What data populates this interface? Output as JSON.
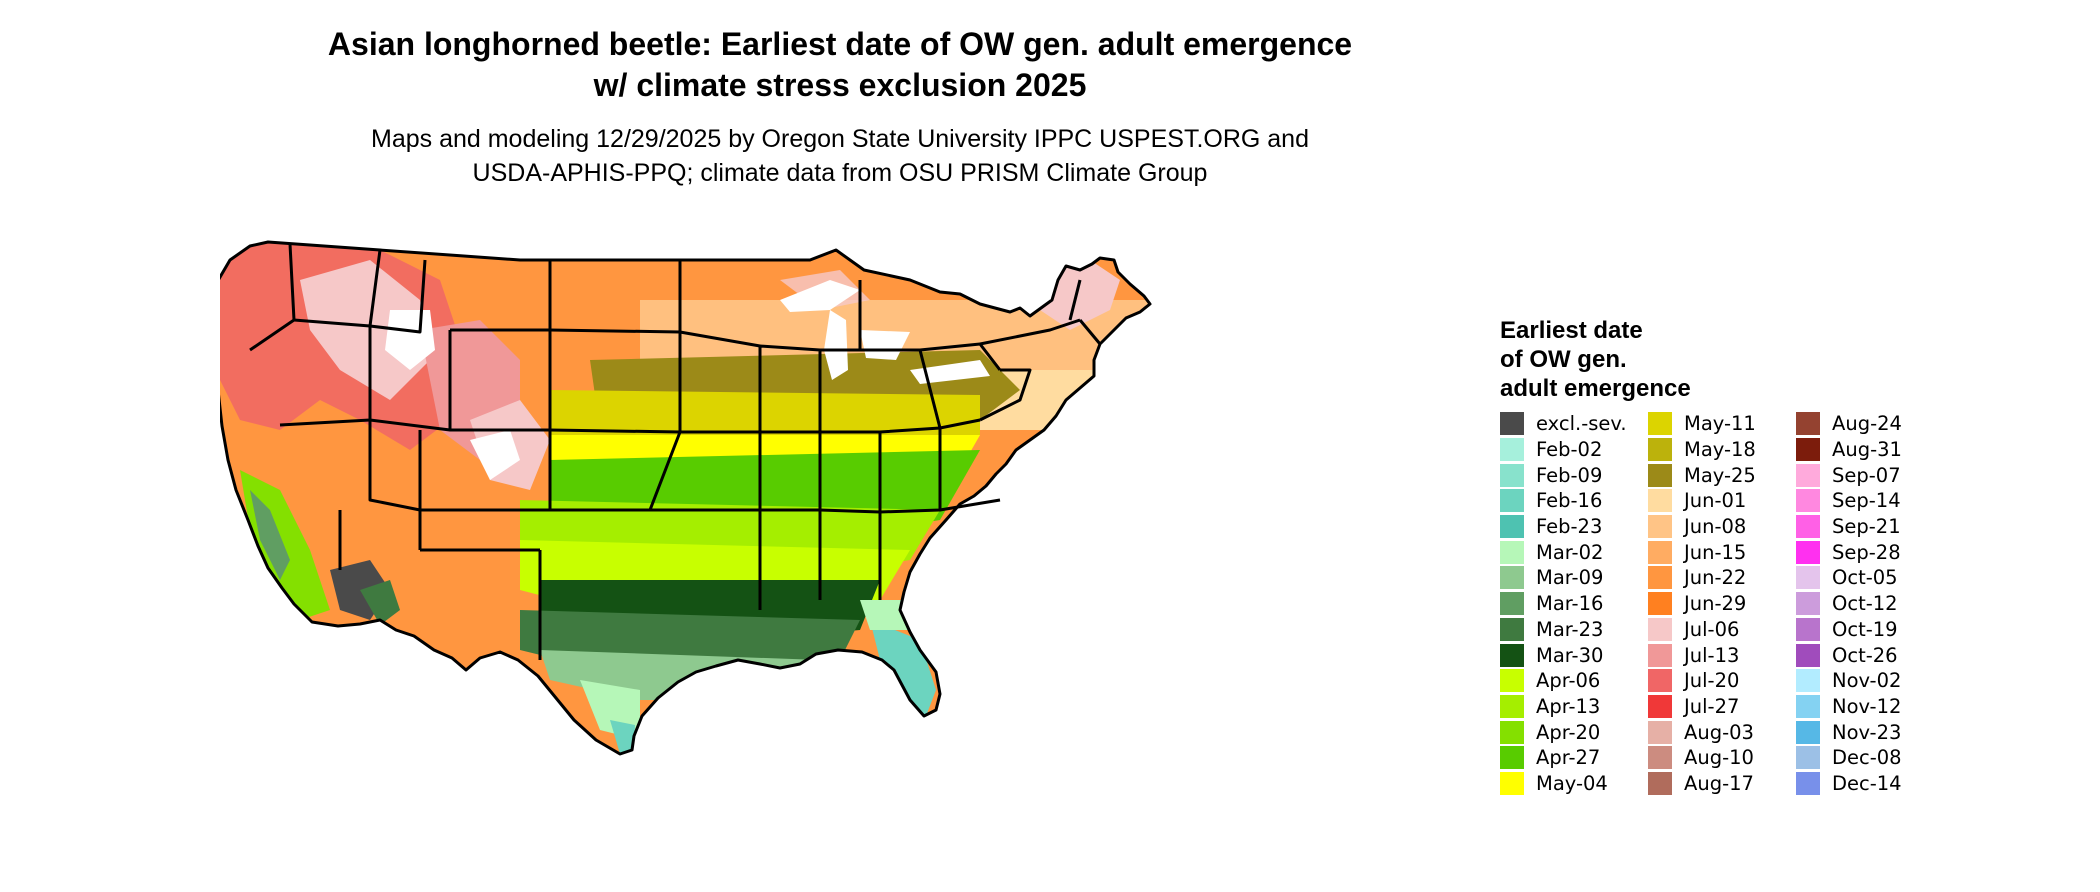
{
  "title_line1": "Asian longhorned beetle: Earliest date of OW gen. adult emergence",
  "title_line2": "w/ climate stress exclusion 2025",
  "subtitle_line1": "Maps and modeling 12/29/2025 by Oregon State University IPPC USPEST.ORG and",
  "subtitle_line2": "USDA-APHIS-PPQ; climate data from OSU PRISM Climate Group",
  "legend": {
    "title_line1": "Earliest date",
    "title_line2": "of OW gen.",
    "title_line3": "adult emergence",
    "columns": [
      [
        {
          "label": "excl.-sev.",
          "color": "#4a4a4a"
        },
        {
          "label": "Feb-02",
          "color": "#a6f0dc"
        },
        {
          "label": "Feb-09",
          "color": "#88e2cc"
        },
        {
          "label": "Feb-16",
          "color": "#6cd4bf"
        },
        {
          "label": "Feb-23",
          "color": "#4ec2b1"
        },
        {
          "label": "Mar-02",
          "color": "#b6f7b8"
        },
        {
          "label": "Mar-09",
          "color": "#8ec98f"
        },
        {
          "label": "Mar-16",
          "color": "#609e62"
        },
        {
          "label": "Mar-23",
          "color": "#3f7a40"
        },
        {
          "label": "Mar-30",
          "color": "#145214"
        },
        {
          "label": "Apr-06",
          "color": "#c8ff00"
        },
        {
          "label": "Apr-13",
          "color": "#a5ee00"
        },
        {
          "label": "Apr-20",
          "color": "#84e000"
        },
        {
          "label": "Apr-27",
          "color": "#58cc00"
        },
        {
          "label": "May-04",
          "color": "#ffff00"
        }
      ],
      [
        {
          "label": "May-11",
          "color": "#dcd400"
        },
        {
          "label": "May-18",
          "color": "#bcb20c"
        },
        {
          "label": "May-25",
          "color": "#9c8a18"
        },
        {
          "label": "Jun-01",
          "color": "#ffdca0"
        },
        {
          "label": "Jun-08",
          "color": "#ffc486"
        },
        {
          "label": "Jun-15",
          "color": "#ffac62"
        },
        {
          "label": "Jun-22",
          "color": "#ff9640"
        },
        {
          "label": "Jun-29",
          "color": "#ff8020"
        },
        {
          "label": "Jul-06",
          "color": "#f6c8c8"
        },
        {
          "label": "Jul-13",
          "color": "#f09898"
        },
        {
          "label": "Jul-20",
          "color": "#f06666"
        },
        {
          "label": "Jul-27",
          "color": "#f03838"
        },
        {
          "label": "Aug-03",
          "color": "#e6b0a6"
        },
        {
          "label": "Aug-10",
          "color": "#cc8c80"
        },
        {
          "label": "Aug-17",
          "color": "#b06c5c"
        }
      ],
      [
        {
          "label": "Aug-24",
          "color": "#944230"
        },
        {
          "label": "Aug-31",
          "color": "#7c1c0c"
        },
        {
          "label": "Sep-07",
          "color": "#ffaadc"
        },
        {
          "label": "Sep-14",
          "color": "#ff88e0"
        },
        {
          "label": "Sep-21",
          "color": "#ff60e6"
        },
        {
          "label": "Sep-28",
          "color": "#ff30f0"
        },
        {
          "label": "Oct-05",
          "color": "#e4c4ec"
        },
        {
          "label": "Oct-12",
          "color": "#cc9cdc"
        },
        {
          "label": "Oct-19",
          "color": "#b874cc"
        },
        {
          "label": "Oct-26",
          "color": "#a04cbc"
        },
        {
          "label": "Nov-02",
          "color": "#b2ecff"
        },
        {
          "label": "Nov-12",
          "color": "#84d2f2"
        },
        {
          "label": "Nov-23",
          "color": "#56b8e6"
        },
        {
          "label": "Dec-08",
          "color": "#9cc0e6"
        },
        {
          "label": "Dec-14",
          "color": "#7890ea"
        }
      ]
    ]
  }
}
